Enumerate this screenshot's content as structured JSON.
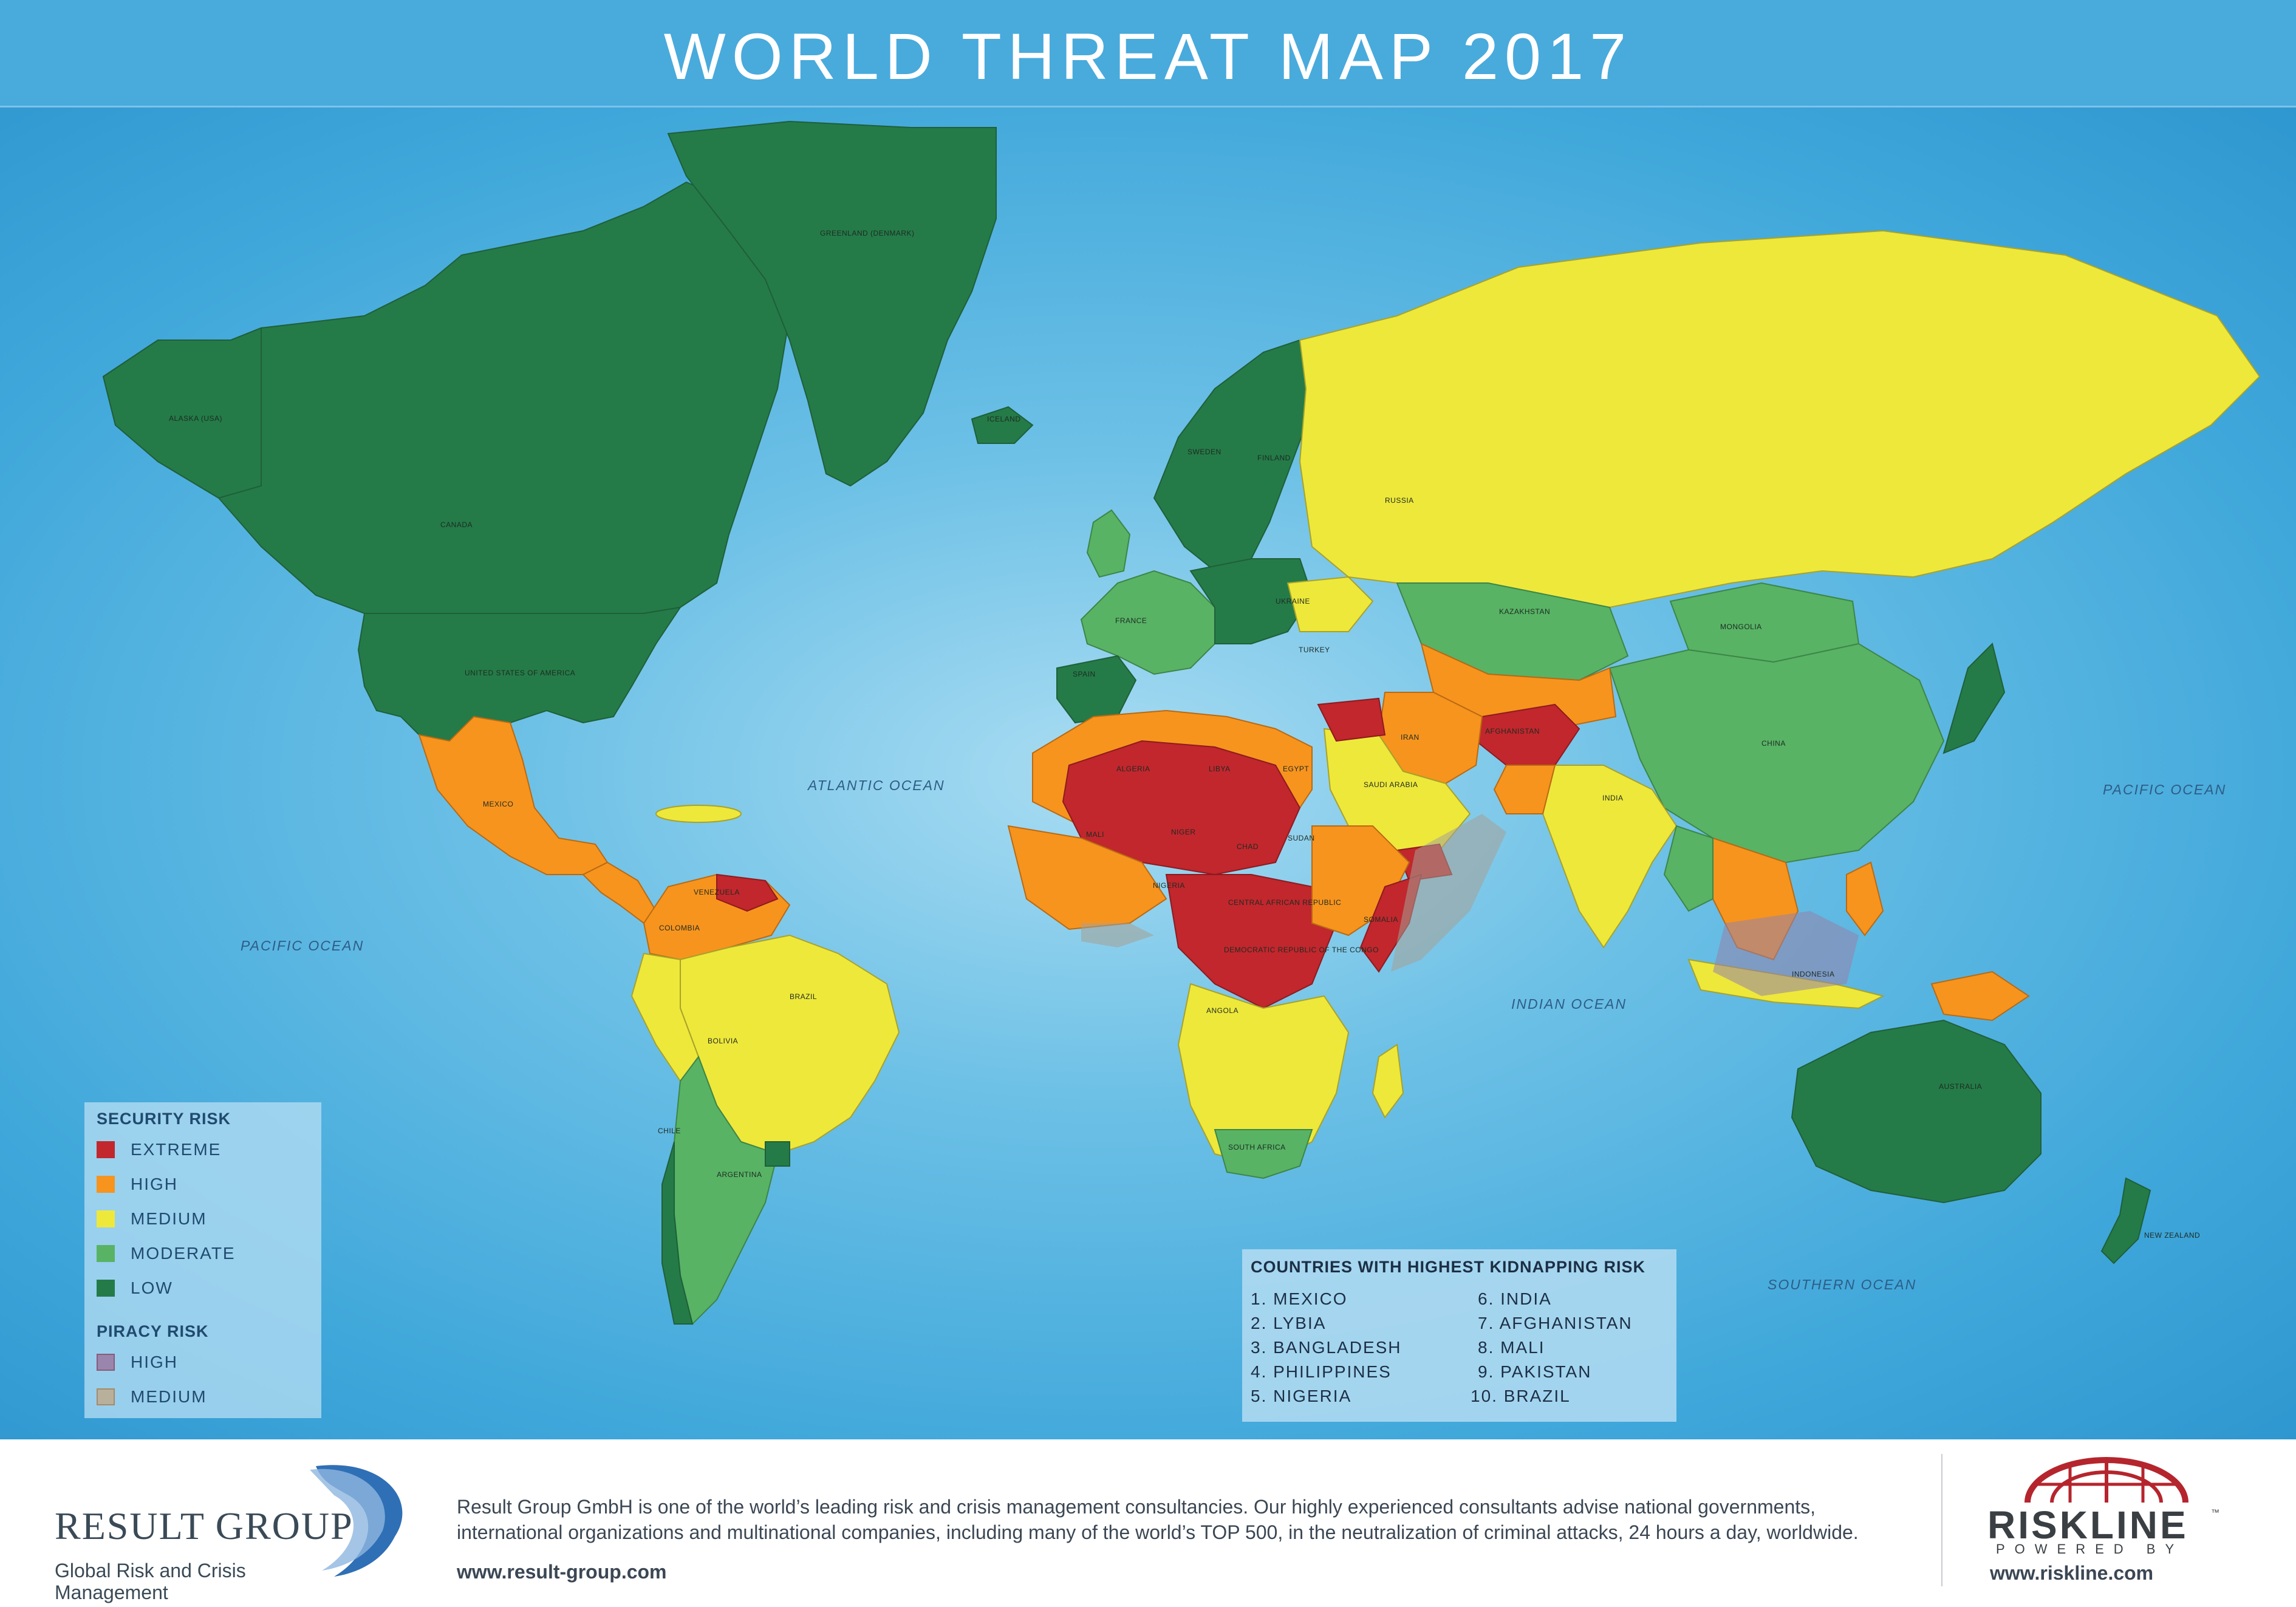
{
  "title": "WORLD THREAT MAP 2017",
  "map": {
    "oceans": [
      {
        "key": "atlantic",
        "label": "ATLANTIC OCEAN"
      },
      {
        "key": "pacific_east",
        "label": "PACIFIC OCEAN"
      },
      {
        "key": "pacific_west",
        "label": "PACIFIC OCEAN"
      },
      {
        "key": "indian",
        "label": "INDIAN OCEAN"
      },
      {
        "key": "southern",
        "label": "SOUTHERN OCEAN"
      }
    ],
    "country_labels": {
      "alaska": "ALASKA (USA)",
      "canada": "CANADA",
      "usa": "UNITED STATES OF AMERICA",
      "greenland": "GREENLAND (DENMARK)",
      "mexico": "MEXICO",
      "brazil": "BRAZIL",
      "bolivia": "BOLIVIA",
      "argentina": "ARGENTINA",
      "chile": "CHILE",
      "colombia": "COLOMBIA",
      "venezuela": "VENEZUELA",
      "russia": "RUSSIA",
      "kazakhstan": "KAZAKHSTAN",
      "mongolia": "MONGOLIA",
      "china": "CHINA",
      "india": "INDIA",
      "afghanistan": "AFGHANISTAN",
      "iran": "IRAN",
      "saudi_arabia": "SAUDI ARABIA",
      "libya": "LIBYA",
      "algeria": "ALGERIA",
      "egypt": "EGYPT",
      "mali": "MALI",
      "niger": "NIGER",
      "chad": "CHAD",
      "sudan": "SUDAN",
      "nigeria": "NIGERIA",
      "car": "CENTRAL AFRICAN REPUBLIC",
      "drc": "DEMOCRATIC REPUBLIC OF THE CONGO",
      "angola": "ANGOLA",
      "south_africa": "SOUTH AFRICA",
      "somalia": "SOMALIA",
      "australia": "AUSTRALIA",
      "new_zealand": "NEW ZEALAND",
      "indonesia": "INDONESIA",
      "france": "FRANCE",
      "spain": "SPAIN",
      "ukraine": "UKRAINE",
      "turkey": "TURKEY",
      "sweden": "SWEDEN",
      "finland": "FINLAND",
      "iceland": "ICELAND"
    }
  },
  "legend": {
    "security_heading": "SECURITY RISK",
    "security": [
      {
        "label": "EXTREME",
        "color": "#c1272d"
      },
      {
        "label": "HIGH",
        "color": "#f7941e"
      },
      {
        "label": "MEDIUM",
        "color": "#eee83b"
      },
      {
        "label": "MODERATE",
        "color": "#58b365"
      },
      {
        "label": "LOW",
        "color": "#247b48"
      }
    ],
    "piracy_heading": "PIRACY RISK",
    "piracy": [
      {
        "label": "HIGH",
        "color": "#9a86ac"
      },
      {
        "label": "MEDIUM",
        "color": "#b9b09c"
      }
    ]
  },
  "kidnapping": {
    "title": "COUNTRIES WITH HIGHEST KIDNAPPING RISK",
    "items": [
      "1. MEXICO",
      "2. LYBIA",
      "3. BANGLADESH",
      "4. PHILIPPINES",
      "5. NIGERIA",
      "6. INDIA",
      "7. AFGHANISTAN",
      "8. MALI",
      "9. PAKISTAN",
      "10. BRAZIL"
    ]
  },
  "footer": {
    "company_name": "RESULT GROUP",
    "tagline": "Global Risk and Crisis Management",
    "description": "Result Group GmbH is one of the world’s leading risk and crisis management consultancies. Our highly experienced consultants advise national governments, international organizations and multinational companies, including many of the world’s TOP 500, in the neutralization of criminal attacks, 24 hours a day, worldwide.",
    "url": "www.result-group.com",
    "partner_name": "RISKLINE",
    "partner_tm": "™",
    "partner_powered": "POWERED BY",
    "partner_url": "www.riskline.com"
  }
}
